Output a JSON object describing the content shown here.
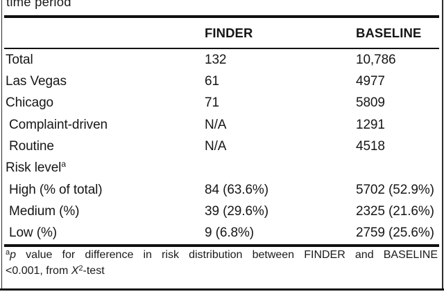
{
  "figure": {
    "caption_fragment": "time period"
  },
  "table": {
    "columns": [
      "FINDER",
      "BASELINE"
    ],
    "rows": [
      {
        "label": "Total",
        "sup": "",
        "finder": "132",
        "baseline": "10,786"
      },
      {
        "label": "Las Vegas",
        "sup": "",
        "finder": "61",
        "baseline": "4977"
      },
      {
        "label": "Chicago",
        "sup": "",
        "finder": "71",
        "baseline": "5809"
      },
      {
        "label": "Complaint-driven",
        "sup": "",
        "finder": "N/A",
        "baseline": "1291"
      },
      {
        "label": "Routine",
        "sup": "",
        "finder": "N/A",
        "baseline": "4518"
      },
      {
        "label": "Risk level",
        "sup": "a",
        "finder": "",
        "baseline": ""
      },
      {
        "label": "High (% of total)",
        "sup": "",
        "finder": "84 (63.6%)",
        "baseline": "5702 (52.9%)"
      },
      {
        "label": "Medium (%)",
        "sup": "",
        "finder": "39 (29.6%)",
        "baseline": "2325 (21.6%)"
      },
      {
        "label": "Low (%)",
        "sup": "",
        "finder": "9 (6.8%)",
        "baseline": "2759 (25.6%)"
      }
    ]
  },
  "footnote": {
    "marker": "a",
    "p_symbol": "p",
    "line1_rest": " value for difference in risk distribution between FINDER and BASELINE",
    "line2_prefix": "<0.001, from ",
    "stat_symbol": "X",
    "stat_sup": "2",
    "line2_suffix": "-test"
  }
}
